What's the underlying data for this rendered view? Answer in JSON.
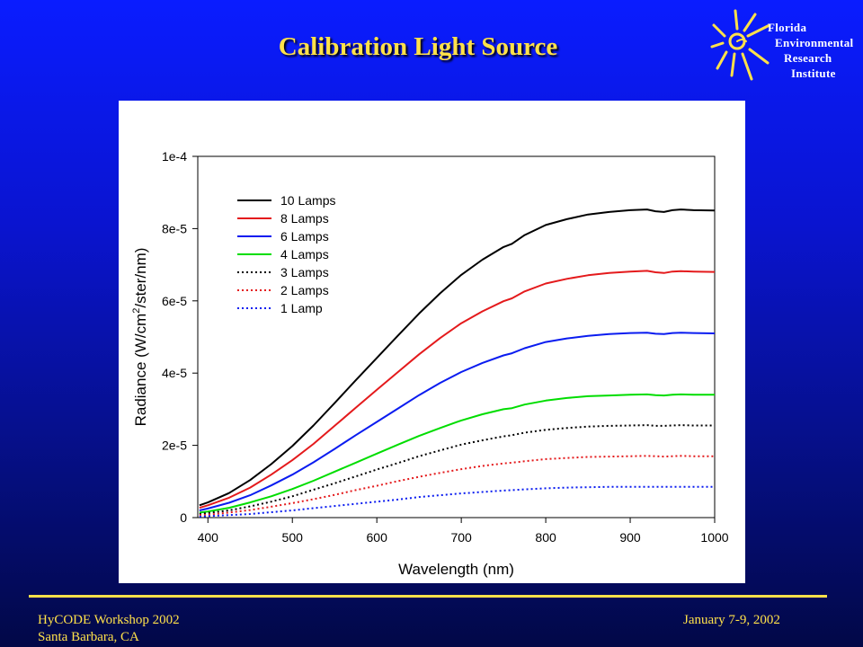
{
  "slide": {
    "title": "Calibration Light Source"
  },
  "logo": {
    "lines": [
      "Florida",
      "Environmental",
      "Research",
      "Institute"
    ],
    "color": "#ffe14a"
  },
  "footer": {
    "left_line1": "HyCODE Workshop 2002",
    "left_line2": "Santa Barbara, CA",
    "right": "January 7-9, 2002"
  },
  "colors": {
    "background_top": "#0a1cff",
    "background_bottom": "#020847",
    "accent": "#ffe14a"
  },
  "chart_data": {
    "type": "line",
    "title": "",
    "xlabel": "Wavelength (nm)",
    "ylabel_parts": [
      "Radiance (W/cm",
      "2",
      "/ster/nm)"
    ],
    "xlim": [
      388,
      1000
    ],
    "ylim": [
      0,
      0.0001
    ],
    "xticks": [
      400,
      500,
      600,
      700,
      800,
      900,
      1000
    ],
    "xtick_labels": [
      "400",
      "500",
      "600",
      "700",
      "800",
      "900",
      "1000"
    ],
    "yticks": [
      0,
      2e-05,
      4e-05,
      6e-05,
      8e-05,
      0.0001
    ],
    "ytick_labels": [
      "0",
      "2e-5",
      "4e-5",
      "6e-5",
      "8e-5",
      "1e-4"
    ],
    "grid": false,
    "legend": "top-left",
    "x": [
      390,
      400,
      425,
      450,
      475,
      500,
      525,
      550,
      575,
      600,
      625,
      650,
      675,
      700,
      725,
      750,
      760,
      775,
      800,
      825,
      850,
      875,
      900,
      920,
      930,
      940,
      950,
      960,
      975,
      1000
    ],
    "series": [
      {
        "name": "10 Lamps",
        "color": "#000000",
        "dash": "solid",
        "values": [
          3.4e-06,
          4.2e-06,
          6.8e-06,
          1.04e-05,
          1.48e-05,
          1.98e-05,
          2.55e-05,
          3.17e-05,
          3.8e-05,
          4.42e-05,
          5.04e-05,
          5.65e-05,
          6.21e-05,
          6.72e-05,
          7.14e-05,
          7.49e-05,
          7.58e-05,
          7.82e-05,
          8.1e-05,
          8.26e-05,
          8.39e-05,
          8.46e-05,
          8.51e-05,
          8.53e-05,
          8.48e-05,
          8.46e-05,
          8.51e-05,
          8.53e-05,
          8.51e-05,
          8.5e-05
        ]
      },
      {
        "name": "8 Lamps",
        "color": "#e41a1c",
        "dash": "solid",
        "values": [
          2.7e-06,
          3.4e-06,
          5.5e-06,
          8.3e-06,
          1.19e-05,
          1.59e-05,
          2.04e-05,
          2.54e-05,
          3.04e-05,
          3.54e-05,
          4.03e-05,
          4.52e-05,
          4.97e-05,
          5.38e-05,
          5.71e-05,
          5.99e-05,
          6.07e-05,
          6.26e-05,
          6.48e-05,
          6.61e-05,
          6.71e-05,
          6.77e-05,
          6.81e-05,
          6.83e-05,
          6.79e-05,
          6.77e-05,
          6.81e-05,
          6.82e-05,
          6.81e-05,
          6.8e-05
        ]
      },
      {
        "name": "6 Lamps",
        "color": "#0a1cf0",
        "dash": "solid",
        "values": [
          2e-06,
          2.5e-06,
          4.1e-06,
          6.2e-06,
          8.9e-06,
          1.19e-05,
          1.53e-05,
          1.9e-05,
          2.28e-05,
          2.65e-05,
          3.02e-05,
          3.39e-05,
          3.73e-05,
          4.03e-05,
          4.28e-05,
          4.49e-05,
          4.55e-05,
          4.69e-05,
          4.86e-05,
          4.96e-05,
          5.03e-05,
          5.08e-05,
          5.11e-05,
          5.12e-05,
          5.09e-05,
          5.08e-05,
          5.11e-05,
          5.12e-05,
          5.11e-05,
          5.1e-05
        ]
      },
      {
        "name": "4 Lamps",
        "color": "#00dd00",
        "dash": "solid",
        "values": [
          1.4e-06,
          1.7e-06,
          2.7e-06,
          4.2e-06,
          5.9e-06,
          7.9e-06,
          1.02e-05,
          1.27e-05,
          1.52e-05,
          1.77e-05,
          2.02e-05,
          2.26e-05,
          2.48e-05,
          2.69e-05,
          2.86e-05,
          3e-05,
          3.03e-05,
          3.13e-05,
          3.24e-05,
          3.31e-05,
          3.36e-05,
          3.38e-05,
          3.4e-05,
          3.41e-05,
          3.39e-05,
          3.38e-05,
          3.4e-05,
          3.41e-05,
          3.4e-05,
          3.4e-05
        ]
      },
      {
        "name": "3 Lamps",
        "color": "#000000",
        "dash": "dotted",
        "values": [
          1e-06,
          1.3e-06,
          2e-06,
          3.1e-06,
          4.4e-06,
          5.9e-06,
          7.7e-06,
          9.5e-06,
          1.14e-05,
          1.33e-05,
          1.51e-05,
          1.7e-05,
          1.86e-05,
          2.02e-05,
          2.14e-05,
          2.25e-05,
          2.28e-05,
          2.35e-05,
          2.43e-05,
          2.48e-05,
          2.52e-05,
          2.54e-05,
          2.55e-05,
          2.56e-05,
          2.54e-05,
          2.54e-05,
          2.55e-05,
          2.56e-05,
          2.55e-05,
          2.55e-05
        ]
      },
      {
        "name": "2 Lamps",
        "color": "#e41a1c",
        "dash": "dotted",
        "values": [
          7e-07,
          8e-07,
          1.4e-06,
          2.1e-06,
          3e-06,
          4e-06,
          5.1e-06,
          6.3e-06,
          7.6e-06,
          8.8e-06,
          1.01e-05,
          1.13e-05,
          1.24e-05,
          1.34e-05,
          1.43e-05,
          1.5e-05,
          1.52e-05,
          1.56e-05,
          1.62e-05,
          1.65e-05,
          1.68e-05,
          1.69e-05,
          1.7e-05,
          1.71e-05,
          1.7e-05,
          1.69e-05,
          1.7e-05,
          1.71e-05,
          1.7e-05,
          1.7e-05
        ]
      },
      {
        "name": "1 Lamp",
        "color": "#0a1cf0",
        "dash": "dotted",
        "values": [
          3e-07,
          4e-07,
          7e-07,
          1e-06,
          1.5e-06,
          2e-06,
          2.6e-06,
          3.2e-06,
          3.8e-06,
          4.4e-06,
          5e-06,
          5.7e-06,
          6.2e-06,
          6.7e-06,
          7.1e-06,
          7.5e-06,
          7.6e-06,
          7.8e-06,
          8.1e-06,
          8.3e-06,
          8.4e-06,
          8.5e-06,
          8.5e-06,
          8.5e-06,
          8.5e-06,
          8.5e-06,
          8.5e-06,
          8.5e-06,
          8.5e-06,
          8.5e-06
        ]
      }
    ]
  }
}
